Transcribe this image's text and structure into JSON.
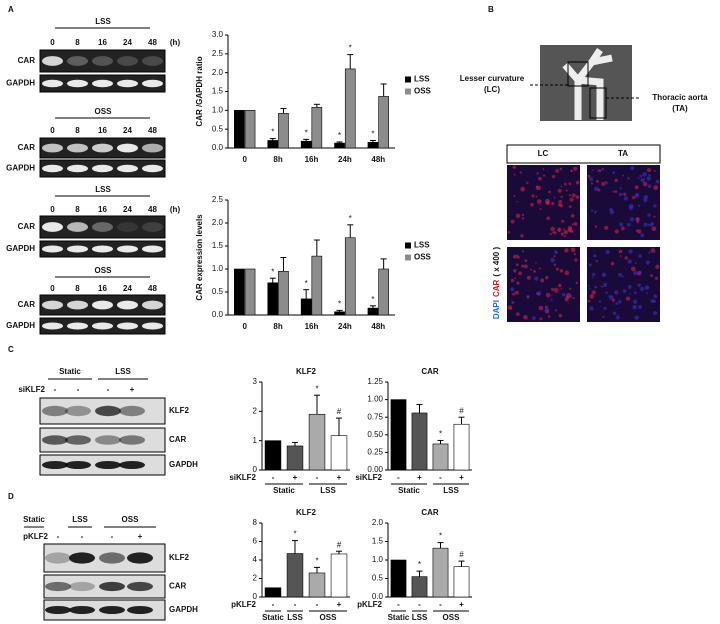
{
  "panels": [
    "A",
    "B",
    "C",
    "D"
  ],
  "blots": [
    {
      "header": "LSS",
      "lanes": [
        "0",
        "8",
        "16",
        "24",
        "48"
      ],
      "unit": "(h)",
      "rows": [
        "CAR",
        "GAPDH"
      ]
    },
    {
      "header": "OSS",
      "lanes": [
        "0",
        "8",
        "16",
        "24",
        "48"
      ],
      "rows": [
        "CAR",
        "GAPDH"
      ]
    },
    {
      "header": "LSS",
      "lanes": [
        "0",
        "8",
        "16",
        "24",
        "48"
      ],
      "unit": "(h)",
      "rows": [
        "CAR",
        "GAPDH"
      ]
    },
    {
      "header": "OSS",
      "lanes": [
        "0",
        "8",
        "16",
        "24",
        "48"
      ],
      "rows": [
        "CAR",
        "GAPDH"
      ]
    },
    {
      "groups": [
        "Static",
        "LSS"
      ],
      "row_label": "siKLF2",
      "signs": [
        "-",
        "-",
        "-",
        "+"
      ],
      "rows": [
        "KLF2",
        "CAR",
        "GAPDH"
      ]
    },
    {
      "groups": [
        "Static",
        "LSS",
        "OSS"
      ],
      "row_label": "pKLF2",
      "signs": [
        "-",
        "-",
        "-",
        "+"
      ],
      "rows": [
        "KLF2",
        "CAR",
        "GAPDH"
      ]
    }
  ],
  "imaging": {
    "aorta_labels": [
      [
        "Lesser curvature",
        "(LC)"
      ],
      [
        "Thoracic aorta",
        "(TA)"
      ]
    ],
    "columns": [
      "LC",
      "TA"
    ],
    "ylabel": [
      "DAPI",
      "CAR",
      "( x 400 )"
    ]
  },
  "chart_data": [
    {
      "type": "bar",
      "ylabel": "CAR /GAPDH ratio",
      "categories": [
        "0",
        "8h",
        "16h",
        "24h",
        "48h"
      ],
      "series": [
        {
          "name": "LSS",
          "color": "#000000",
          "values": [
            1.0,
            0.2,
            0.18,
            0.13,
            0.15
          ],
          "errors": [
            0,
            0.05,
            0.05,
            0.03,
            0.05
          ],
          "marks": [
            null,
            "*",
            "*",
            "*",
            "*"
          ]
        },
        {
          "name": "OSS",
          "color": "#8c8c8c",
          "values": [
            1.0,
            0.92,
            1.08,
            2.1,
            1.37
          ],
          "errors": [
            0,
            0.13,
            0.08,
            0.38,
            0.33
          ],
          "marks": [
            null,
            null,
            null,
            "*",
            null
          ]
        }
      ],
      "ylim": [
        0,
        3
      ],
      "yticks": [
        {
          "value": 0,
          "label": "0.0"
        },
        0.5,
        {
          "value": 1,
          "label": "1.0"
        },
        1.5,
        {
          "value": 2,
          "label": "2.0"
        },
        2.5,
        {
          "value": 3,
          "label": "3.0"
        }
      ]
    },
    {
      "type": "bar",
      "ylabel": "CAR expression levels",
      "categories": [
        "0",
        "8h",
        "16h",
        "24h",
        "48h"
      ],
      "series": [
        {
          "name": "LSS",
          "color": "#000000",
          "values": [
            1.0,
            0.7,
            0.35,
            0.07,
            0.15
          ],
          "errors": [
            0,
            0.1,
            0.2,
            0.03,
            0.05
          ],
          "marks": [
            null,
            "*",
            "*",
            "*",
            "*"
          ]
        },
        {
          "name": "OSS",
          "color": "#8c8c8c",
          "values": [
            1.0,
            0.95,
            1.28,
            1.68,
            1.0
          ],
          "errors": [
            0,
            0.3,
            0.35,
            0.28,
            0.22
          ],
          "marks": [
            null,
            null,
            null,
            "*",
            null
          ]
        }
      ],
      "ylim": [
        0,
        2.5
      ],
      "yticks": [
        {
          "value": 0,
          "label": "0.0"
        },
        0.5,
        {
          "value": 1,
          "label": "1.0"
        },
        1.5,
        {
          "value": 2,
          "label": "2.0"
        },
        2.5
      ]
    },
    {
      "type": "bar",
      "title": "KLF2",
      "row_label": "siKLF2",
      "categories": [
        "-",
        "+",
        "-",
        "+"
      ],
      "groups": [
        {
          "label": "Static",
          "span": 2
        },
        {
          "label": "LSS",
          "span": 2
        }
      ],
      "values": [
        1.0,
        0.82,
        1.9,
        1.17
      ],
      "errors": [
        0,
        0.12,
        0.65,
        0.6
      ],
      "marks": [
        null,
        null,
        "*",
        "#"
      ],
      "colors": [
        "#000000",
        "#555555",
        "#aaaaaa",
        "#ffffff"
      ],
      "ylim": [
        0,
        3
      ],
      "yticks": [
        0,
        1,
        2,
        3
      ]
    },
    {
      "type": "bar",
      "title": "CAR",
      "row_label": "siKLF2",
      "categories": [
        "-",
        "+",
        "-",
        "+"
      ],
      "groups": [
        {
          "label": "Static",
          "span": 2
        },
        {
          "label": "LSS",
          "span": 2
        }
      ],
      "values": [
        1.0,
        0.81,
        0.37,
        0.65
      ],
      "errors": [
        0,
        0.12,
        0.05,
        0.1
      ],
      "marks": [
        null,
        null,
        "*",
        "#"
      ],
      "colors": [
        "#000000",
        "#555555",
        "#aaaaaa",
        "#ffffff"
      ],
      "ylim": [
        0,
        1.25
      ],
      "yticks": [
        {
          "value": 0,
          "label": "0.00"
        },
        0.25,
        {
          "value": 0.5,
          "label": "0.50"
        },
        0.75,
        {
          "value": 1,
          "label": "1.00"
        },
        1.25
      ]
    },
    {
      "type": "bar",
      "title": "KLF2",
      "row_label": "pKLF2",
      "categories": [
        "-",
        "-",
        "-",
        "+"
      ],
      "groups": [
        {
          "label": "Static",
          "span": 1
        },
        {
          "label": "LSS",
          "span": 1
        },
        {
          "label": "OSS",
          "span": 2
        }
      ],
      "values": [
        1.0,
        4.7,
        2.6,
        4.65
      ],
      "errors": [
        0,
        1.4,
        0.6,
        0.3
      ],
      "marks": [
        null,
        "*",
        "*",
        "#"
      ],
      "colors": [
        "#000000",
        "#555555",
        "#aaaaaa",
        "#ffffff"
      ],
      "ylim": [
        0,
        8
      ],
      "yticks": [
        0,
        2,
        4,
        6,
        8
      ]
    },
    {
      "type": "bar",
      "title": "CAR",
      "row_label": "pKLF2",
      "categories": [
        "-",
        "-",
        "-",
        "+"
      ],
      "groups": [
        {
          "label": "Static",
          "span": 1
        },
        {
          "label": "LSS",
          "span": 1
        },
        {
          "label": "OSS",
          "span": 2
        }
      ],
      "values": [
        1.0,
        0.55,
        1.32,
        0.82
      ],
      "errors": [
        0,
        0.15,
        0.15,
        0.15
      ],
      "marks": [
        null,
        "*",
        "*",
        "#"
      ],
      "colors": [
        "#000000",
        "#555555",
        "#aaaaaa",
        "#ffffff"
      ],
      "ylim": [
        0,
        2
      ],
      "yticks": [
        {
          "value": 0,
          "label": "0.0"
        },
        0.5,
        {
          "value": 1,
          "label": "1.0"
        },
        1.5,
        {
          "value": 2,
          "label": "2.0"
        }
      ]
    }
  ]
}
